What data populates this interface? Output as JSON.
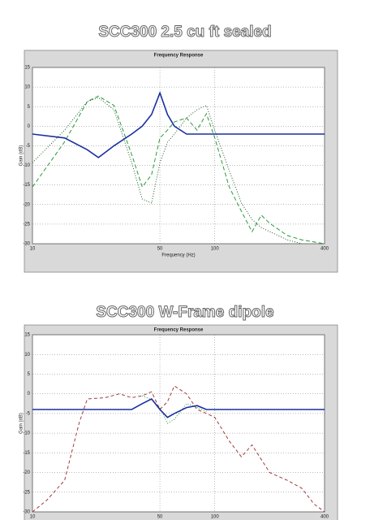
{
  "chart_data": [
    {
      "type": "line",
      "title": "SCC300 2.5 cu ft sealed",
      "subtitle": "Frequency Response",
      "xlabel": "Frequency (Hz)",
      "ylabel": "Gain (dB)",
      "xscale": "log",
      "grid": true,
      "xlim": [
        10,
        400
      ],
      "xticks": [
        10,
        50,
        100,
        400
      ],
      "ylim": [
        -30,
        15
      ],
      "yticks": [
        15,
        10,
        5,
        0,
        -5,
        -10,
        -15,
        -20,
        -25,
        -30
      ],
      "x": [
        10,
        15,
        20,
        23,
        28,
        35,
        40,
        45,
        50,
        55,
        60,
        70,
        80,
        90,
        100,
        120,
        140,
        160,
        180,
        200,
        250,
        300,
        400
      ],
      "series": [
        {
          "color": "#2a9a3a",
          "dash": "5,3",
          "values": [
            -15.5,
            -4,
            6.3,
            7.7,
            5.3,
            -7.2,
            -15.5,
            -12.4,
            -3,
            -1,
            1.1,
            2.1,
            -1,
            3.2,
            -3,
            -15.5,
            -21.7,
            -26.9,
            -22.7,
            -24.8,
            -27.9,
            -29,
            -30
          ]
        },
        {
          "color": "#1f5a28",
          "dash": "1,2",
          "values": [
            -9.3,
            -1,
            6.3,
            7.3,
            4.2,
            -9.3,
            -18.6,
            -19.6,
            -9.3,
            -4.1,
            -2,
            2.1,
            4.2,
            5.3,
            -1,
            -11.3,
            -19.6,
            -23.8,
            -25.9,
            -26.9,
            -29,
            -30,
            null
          ]
        },
        {
          "color": "#1a2fa0",
          "dash": "",
          "values": [
            -2,
            -3,
            -6,
            -8,
            -5,
            -2,
            0,
            3,
            8.5,
            3,
            0,
            -2,
            -2,
            -2,
            -2,
            -2,
            -2,
            -2,
            -2,
            -2,
            -2,
            -2,
            -2
          ]
        }
      ]
    },
    {
      "type": "line",
      "title": "SCC300 W-Frame dipole",
      "subtitle": "Frequency Response",
      "ylabel": "Gain (dB)",
      "xscale": "log",
      "grid": true,
      "xlim": [
        10,
        400
      ],
      "xticks": [
        10,
        50,
        100,
        400
      ],
      "ylim": [
        -30,
        15
      ],
      "yticks": [
        15,
        10,
        5,
        0,
        -5,
        -10,
        -15,
        -20,
        -25,
        -30
      ],
      "x": [
        10,
        12,
        15,
        18,
        20,
        25,
        30,
        35,
        40,
        45,
        50,
        55,
        60,
        70,
        80,
        90,
        100,
        120,
        140,
        160,
        200,
        250,
        300,
        350,
        400
      ],
      "series": [
        {
          "color": "#a03a3a",
          "dash": "4,3",
          "values": [
            -30,
            -27,
            -22,
            -7.5,
            -1.3,
            -1,
            0,
            -1,
            -0.5,
            0.5,
            -4,
            -2,
            2,
            0,
            -4,
            -5,
            -6,
            -12,
            -16,
            -13,
            -20,
            -22,
            -24,
            -28,
            -30
          ]
        },
        {
          "color": "#2a9a3a",
          "dash": "1,2",
          "values": [
            null,
            null,
            null,
            null,
            null,
            null,
            null,
            null,
            -0.5,
            -1.5,
            -3.5,
            -7.5,
            -6.5,
            -2.5,
            -3.5,
            -4.5,
            null,
            null,
            null,
            null,
            null,
            null,
            null,
            null,
            null
          ]
        },
        {
          "color": "#1a2fa0",
          "dash": "",
          "values": [
            -4,
            -4,
            -4,
            -4,
            -4,
            -4,
            -4,
            -4,
            -2.5,
            -1.3,
            -4,
            -6,
            -5,
            -3.5,
            -3,
            -4,
            -4,
            -4,
            -4,
            -4,
            -4,
            -4,
            -4,
            -4,
            -4
          ]
        }
      ]
    }
  ]
}
